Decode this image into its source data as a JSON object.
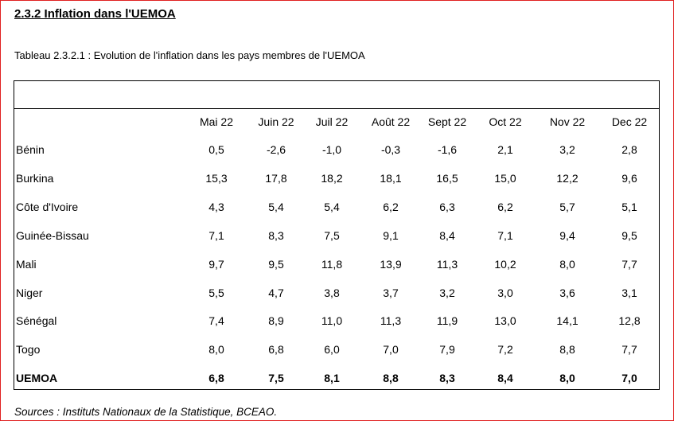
{
  "heading": "2.3.2 Inflation dans l'UEMOA",
  "caption": "Tableau 2.3.2.1 : Evolution de l'inflation dans les pays membres de l'UEMOA",
  "table": {
    "columns": [
      "Mai 22",
      "Juin 22",
      "Juil 22",
      "Août 22",
      "Sept 22",
      "Oct 22",
      "Nov 22",
      "Dec 22"
    ],
    "rows": [
      {
        "label": "Bénin",
        "values": [
          "0,5",
          "-2,6",
          "-1,0",
          "-0,3",
          "-1,6",
          "2,1",
          "3,2",
          "2,8"
        ],
        "bold": false
      },
      {
        "label": "Burkina",
        "values": [
          "15,3",
          "17,8",
          "18,2",
          "18,1",
          "16,5",
          "15,0",
          "12,2",
          "9,6"
        ],
        "bold": false
      },
      {
        "label": "Côte d'Ivoire",
        "values": [
          "4,3",
          "5,4",
          "5,4",
          "6,2",
          "6,3",
          "6,2",
          "5,7",
          "5,1"
        ],
        "bold": false
      },
      {
        "label": "Guinée-Bissau",
        "values": [
          "7,1",
          "8,3",
          "7,5",
          "9,1",
          "8,4",
          "7,1",
          "9,4",
          "9,5"
        ],
        "bold": false
      },
      {
        "label": "Mali",
        "values": [
          "9,7",
          "9,5",
          "11,8",
          "13,9",
          "11,3",
          "10,2",
          "8,0",
          "7,7"
        ],
        "bold": false
      },
      {
        "label": "Niger",
        "values": [
          "5,5",
          "4,7",
          "3,8",
          "3,7",
          "3,2",
          "3,0",
          "3,6",
          "3,1"
        ],
        "bold": false
      },
      {
        "label": "Sénégal",
        "values": [
          "7,4",
          "8,9",
          "11,0",
          "11,3",
          "11,9",
          "13,0",
          "14,1",
          "12,8"
        ],
        "bold": false
      },
      {
        "label": "Togo",
        "values": [
          "8,0",
          "6,8",
          "6,0",
          "7,0",
          "7,9",
          "7,2",
          "8,8",
          "7,7"
        ],
        "bold": false
      },
      {
        "label": "UEMOA",
        "values": [
          "6,8",
          "7,5",
          "8,1",
          "8,8",
          "8,3",
          "8,4",
          "8,0",
          "7,0"
        ],
        "bold": true
      }
    ]
  },
  "source": "Sources : Instituts Nationaux de la Statistique, BCEAO."
}
